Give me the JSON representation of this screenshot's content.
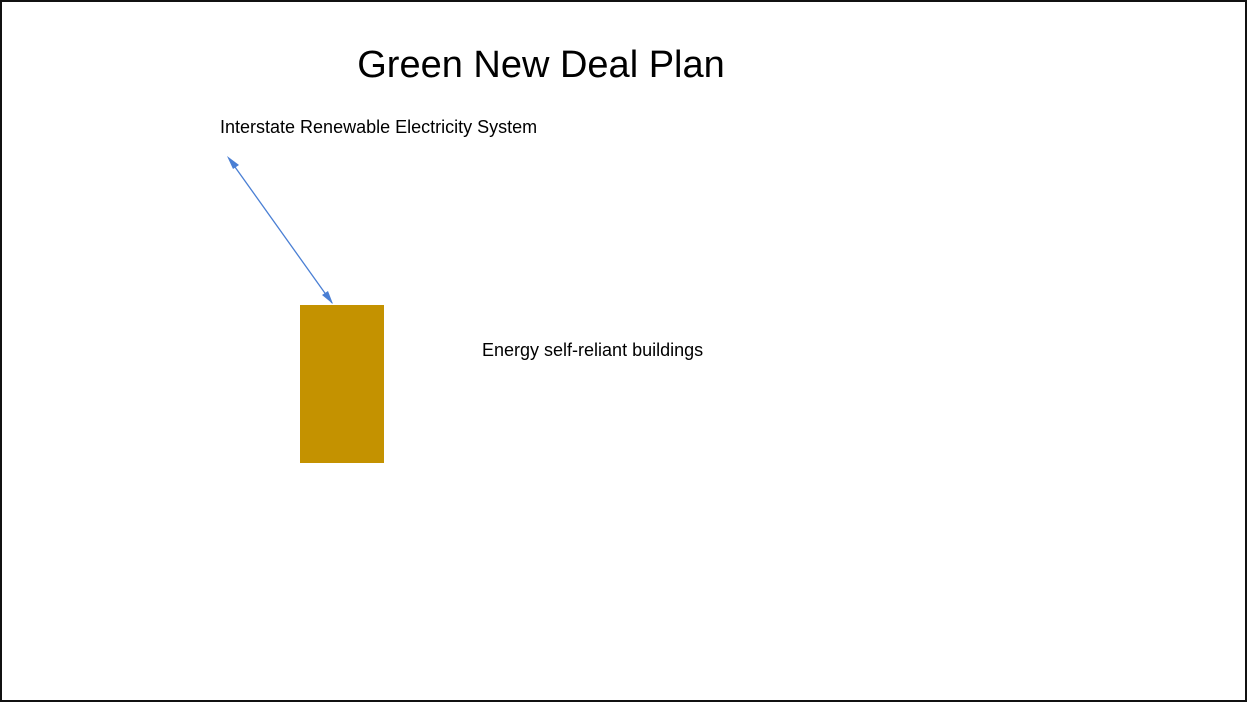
{
  "slide": {
    "title": "Green New Deal Plan",
    "nodes": [
      {
        "id": "grid",
        "label": "Interstate Renewable Electricity System"
      },
      {
        "id": "buildings",
        "label": "Energy self-reliant buildings"
      }
    ],
    "edges": [
      {
        "from": "buildings",
        "to": "grid",
        "bidirectional": true
      }
    ]
  },
  "colors": {
    "building_fill": "#C49200",
    "arrow_stroke": "#4A7FD4",
    "border": "#111111",
    "background": "#FFFFFF"
  }
}
